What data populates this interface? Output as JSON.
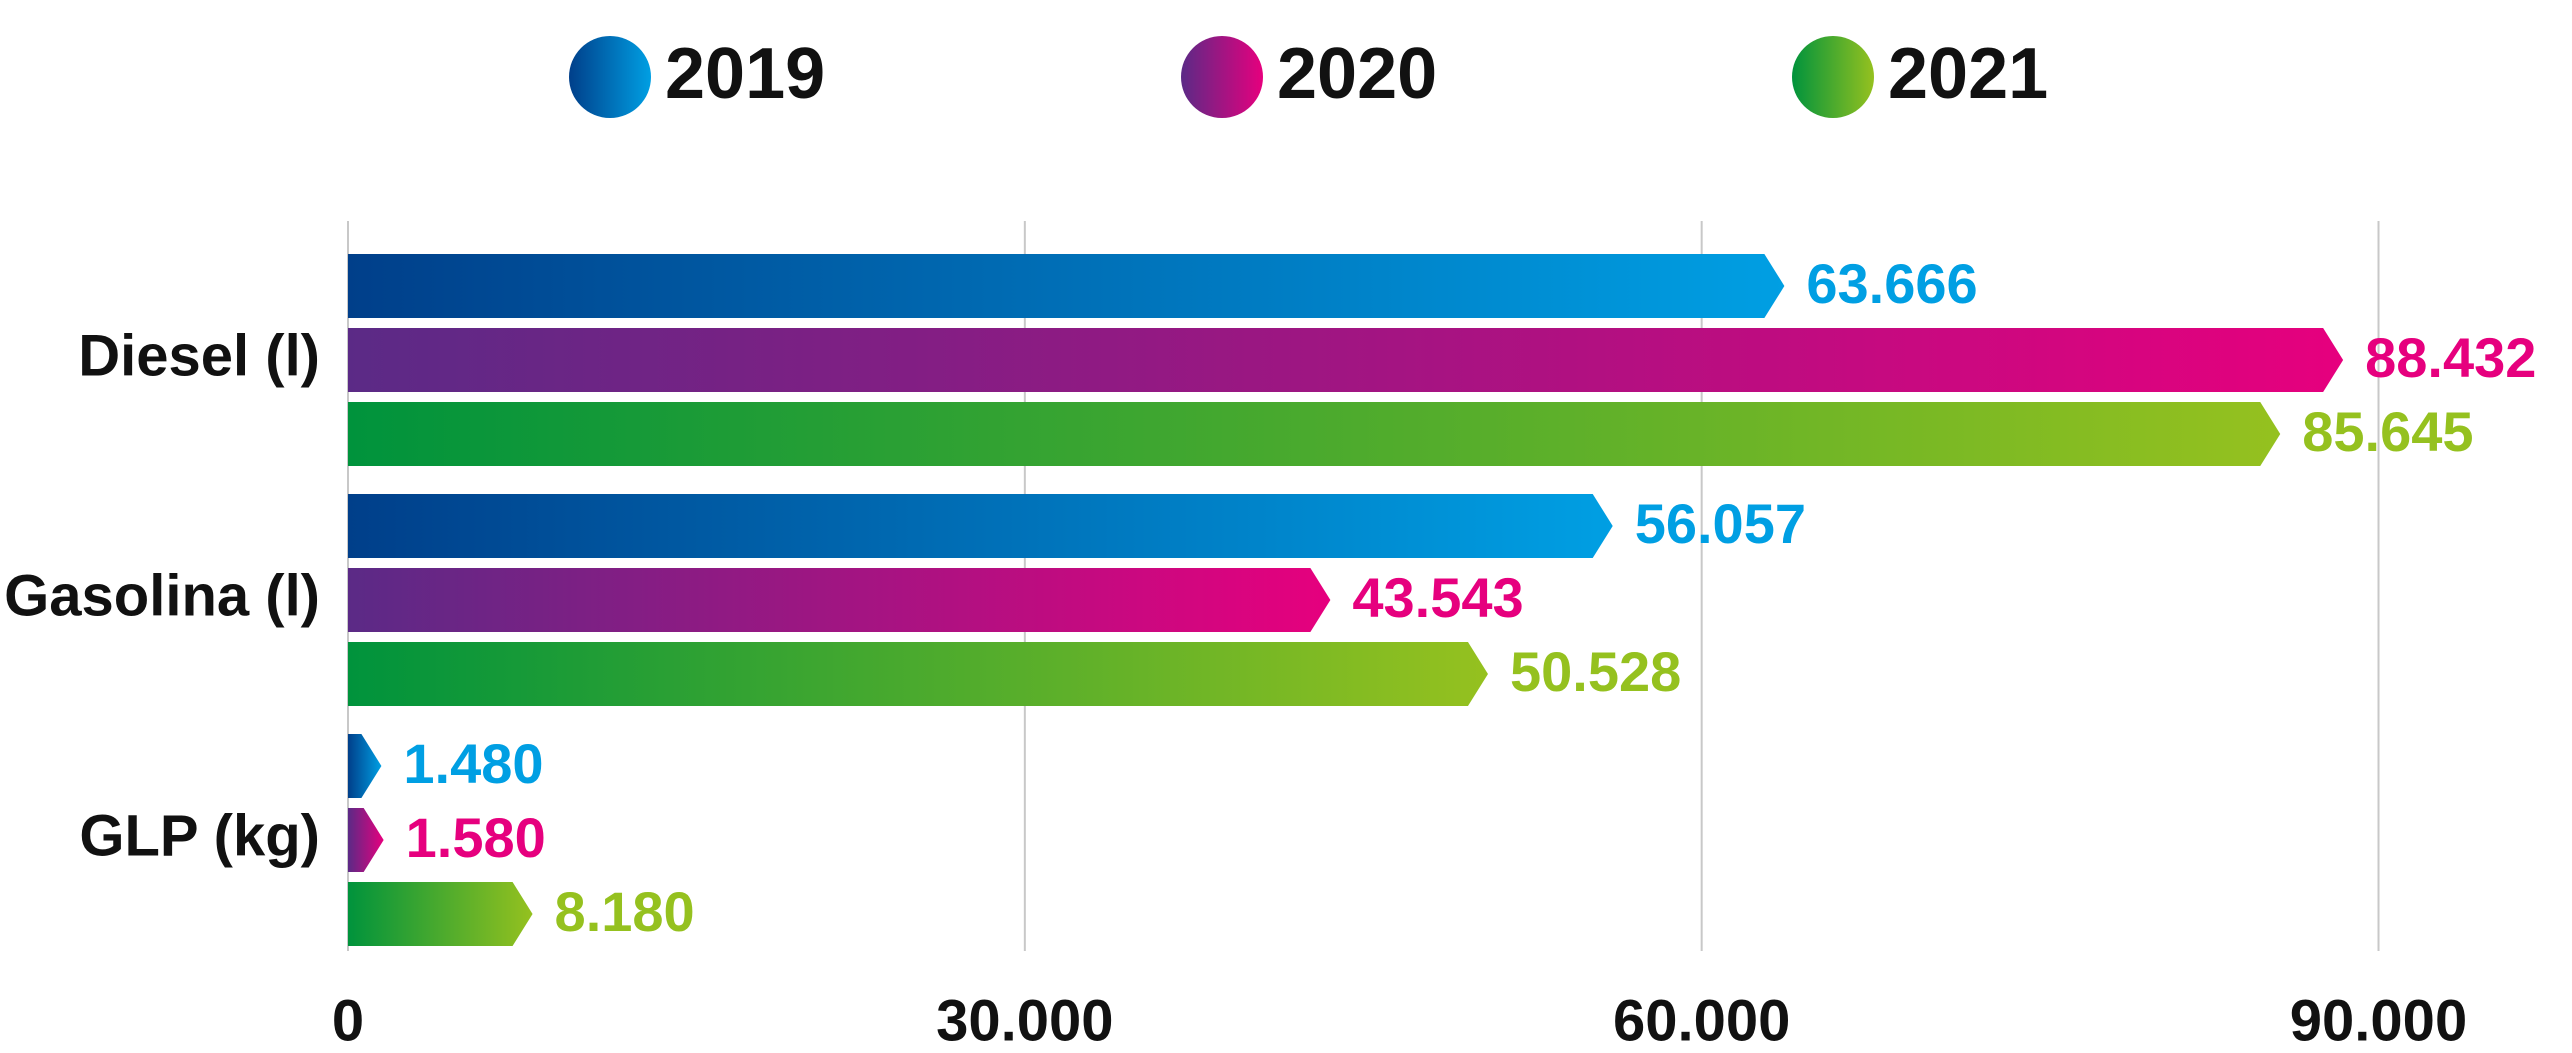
{
  "chart_data": {
    "type": "hbar",
    "categories": [
      "Diesel (l)",
      "Gasolina (l)",
      "GLP (kg)"
    ],
    "series": [
      {
        "name": "2019",
        "colors": [
          "#003f8a",
          "#009fe3"
        ],
        "values": [
          63666,
          56057,
          1480
        ],
        "value_labels": [
          "63.666",
          "56.057",
          "1.480"
        ]
      },
      {
        "name": "2020",
        "colors": [
          "#5b2a86",
          "#e6007e"
        ],
        "values": [
          88432,
          43543,
          1580
        ],
        "value_labels": [
          "88.432",
          "43.543",
          "1.580"
        ]
      },
      {
        "name": "2021",
        "colors": [
          "#00933c",
          "#95c11f"
        ],
        "values": [
          85645,
          50528,
          8180
        ],
        "value_labels": [
          "85.645",
          "50.528",
          "8.180"
        ]
      }
    ],
    "xlim": [
      0,
      98000
    ],
    "xticks": [
      0,
      {
        "value": 30000,
        "label": "30.000"
      },
      {
        "value": 60000,
        "label": "60.000"
      },
      {
        "value": 90000,
        "label": "90.000"
      }
    ],
    "grid": true
  }
}
